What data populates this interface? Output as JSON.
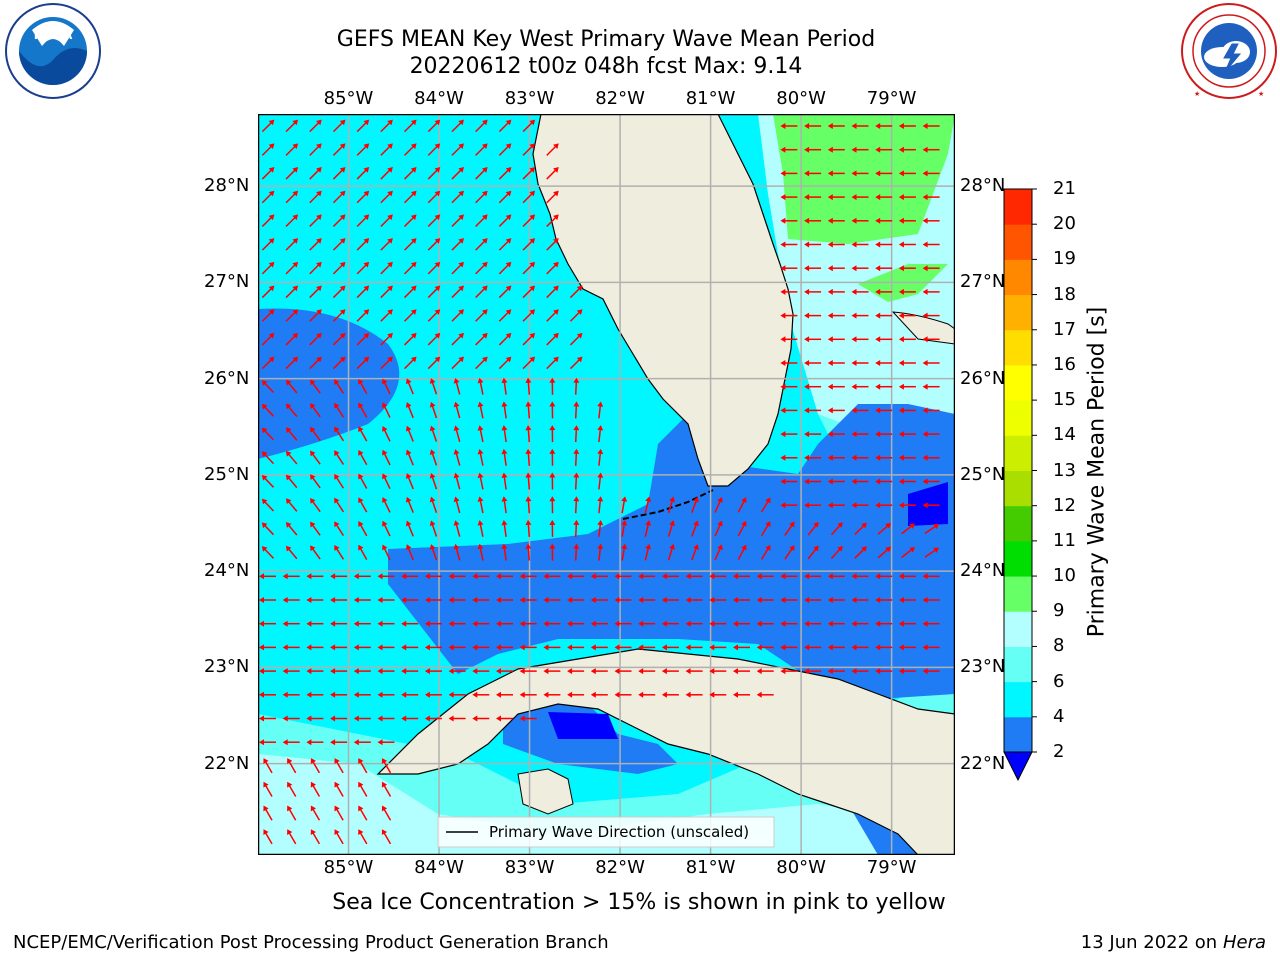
{
  "header": {
    "title_line1": "GEFS MEAN Key West Primary Wave Mean Period",
    "title_line2": "20220612 t00z 048h fcst   Max: 9.14"
  },
  "logos": {
    "left": {
      "name": "NOAA",
      "ring_text": "NATIONAL OCEANIC AND ATMOSPHERIC ADMINISTRATION · U.S. DEPARTMENT OF COMMERCE"
    },
    "right": {
      "name": "National Weather Service",
      "ring_text": "NATIONAL WEATHER SERVICE"
    }
  },
  "map": {
    "extent": {
      "lon": [
        -86,
        -78.3
      ],
      "lat": [
        21.05,
        28.75
      ]
    },
    "lon_labels": [
      "85°W",
      "84°W",
      "83°W",
      "82°W",
      "81°W",
      "80°W",
      "79°W"
    ],
    "lon_values": [
      -85,
      -84,
      -83,
      -82,
      -81,
      -80,
      -79
    ],
    "lat_labels": [
      "28°N",
      "27°N",
      "26°N",
      "25°N",
      "24°N",
      "23°N",
      "22°N"
    ],
    "lat_values": [
      28,
      27,
      26,
      25,
      24,
      23,
      22
    ],
    "legend_label": "Primary Wave Direction (unscaled)",
    "colors": {
      "land": "#efedde",
      "coast": "#000000",
      "grid": "#b0b0b0",
      "arrow": "#ff0000",
      "period_2_4": "#1f7cf5",
      "period_4_6": "#00f7ff",
      "period_6_8": "#66fff5",
      "period_8_9": "#b3ffff",
      "period_9_10": "#66ff66",
      "below_2": "#0000ff"
    }
  },
  "colorbar": {
    "title": "Primary Wave Mean Period [s]",
    "tick_labels": [
      "21",
      "20",
      "19",
      "18",
      "17",
      "16",
      "15",
      "14",
      "13",
      "12",
      "11",
      "10",
      "9",
      "8",
      "6",
      "4",
      "2"
    ],
    "levels": [
      2,
      4,
      6,
      8,
      9,
      10,
      11,
      12,
      13,
      14,
      15,
      16,
      17,
      18,
      19,
      20,
      21
    ],
    "colors": [
      "#1f7cf5",
      "#00f7ff",
      "#66fff5",
      "#b3ffff",
      "#66ff66",
      "#00dd00",
      "#44cc00",
      "#aadd00",
      "#ccee00",
      "#eeff00",
      "#ffff00",
      "#ffdd00",
      "#ffb000",
      "#ff8800",
      "#ff5500",
      "#ff2800"
    ],
    "under_color": "#0000ff"
  },
  "subtitle": "Sea Ice Concentration > 15% is shown in pink to yellow",
  "footer": {
    "left": "NCEP/EMC/Verification Post Processing Product Generation Branch",
    "right_date": "13 Jun 2022 on",
    "right_host": "Hera"
  }
}
